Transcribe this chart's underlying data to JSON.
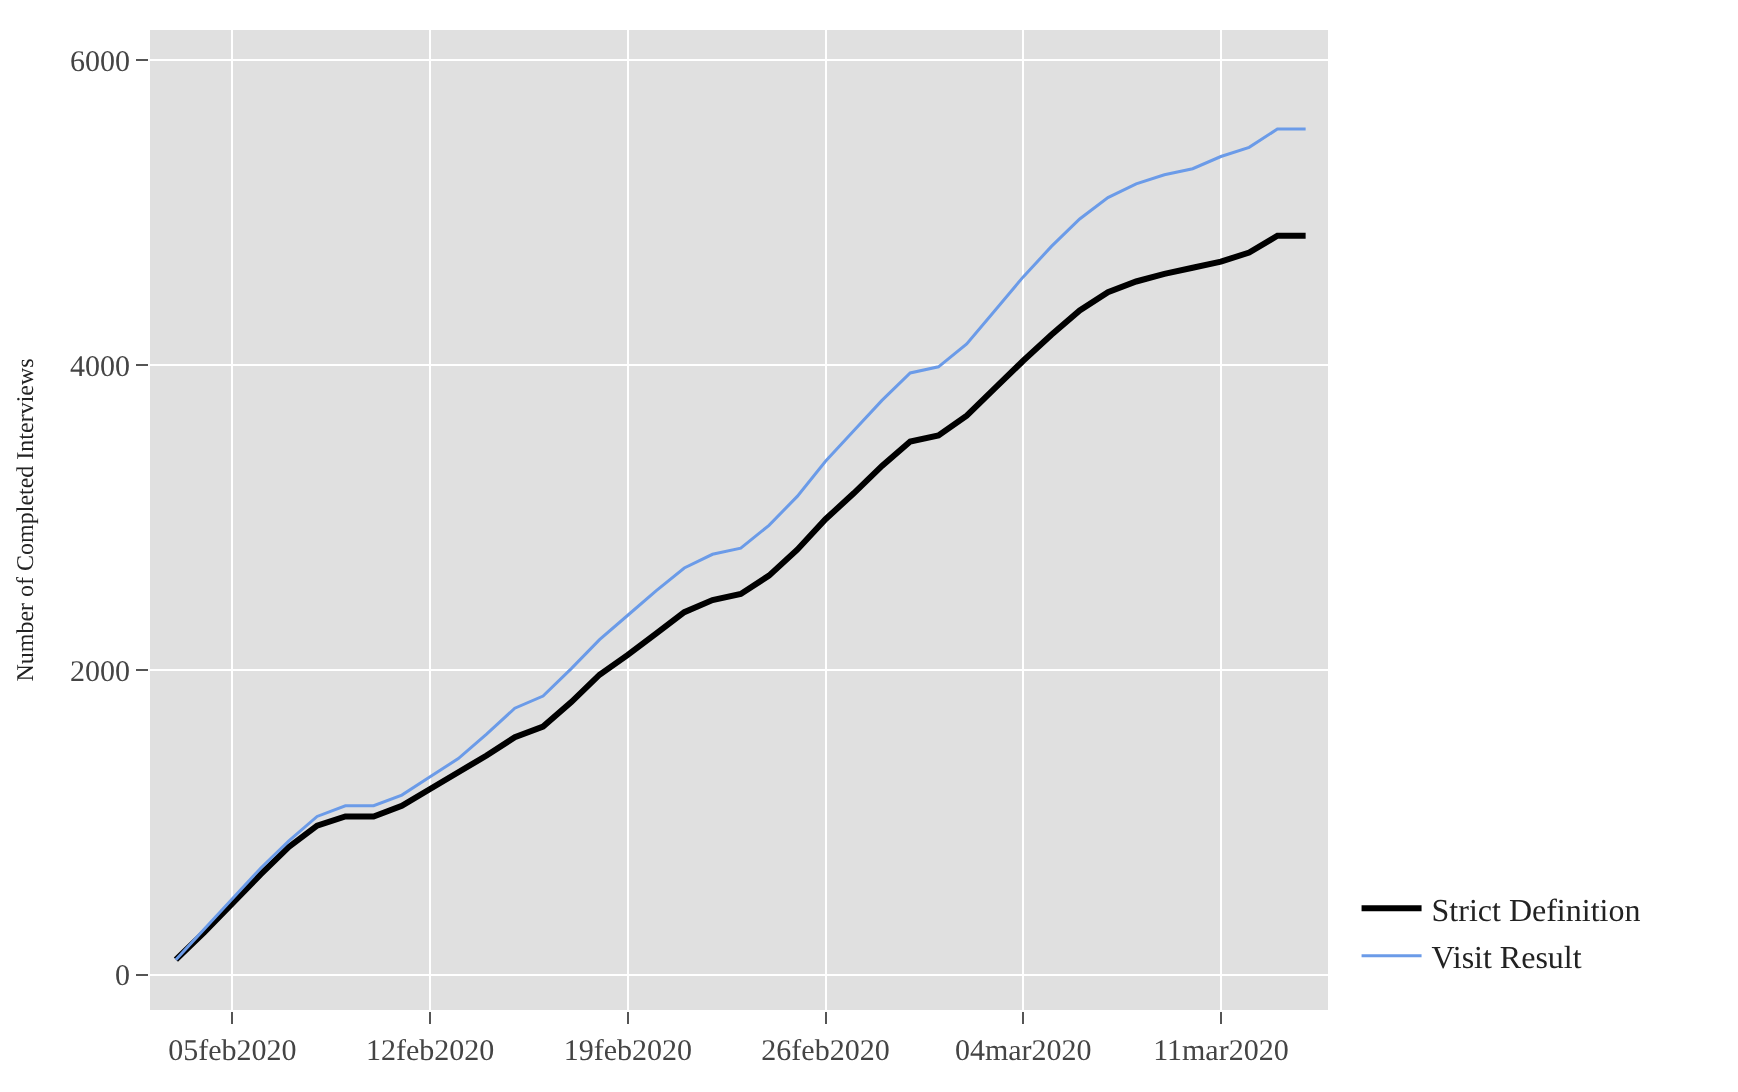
{
  "chart_data": {
    "type": "line",
    "ylabel": "Number of Completed Interviews",
    "x": [
      "2020-02-03",
      "2020-02-04",
      "2020-02-05",
      "2020-02-06",
      "2020-02-07",
      "2020-02-08",
      "2020-02-09",
      "2020-02-10",
      "2020-02-11",
      "2020-02-12",
      "2020-02-13",
      "2020-02-14",
      "2020-02-15",
      "2020-02-16",
      "2020-02-17",
      "2020-02-18",
      "2020-02-19",
      "2020-02-20",
      "2020-02-21",
      "2020-02-22",
      "2020-02-23",
      "2020-02-24",
      "2020-02-25",
      "2020-02-26",
      "2020-02-27",
      "2020-02-28",
      "2020-02-29",
      "2020-03-01",
      "2020-03-02",
      "2020-03-03",
      "2020-03-04",
      "2020-03-05",
      "2020-03-06",
      "2020-03-07",
      "2020-03-08",
      "2020-03-09",
      "2020-03-10",
      "2020-03-11",
      "2020-03-12",
      "2020-03-13",
      "2020-03-14"
    ],
    "series": [
      {
        "name": "Strict Definition",
        "color": "#000000",
        "values": [
          100,
          280,
          470,
          660,
          840,
          980,
          1040,
          1040,
          1110,
          1220,
          1330,
          1440,
          1560,
          1630,
          1790,
          1970,
          2100,
          2240,
          2380,
          2460,
          2500,
          2620,
          2790,
          2990,
          3160,
          3340,
          3500,
          3540,
          3670,
          3850,
          4030,
          4200,
          4360,
          4480,
          4550,
          4600,
          4640,
          4680,
          4740,
          4850,
          4850
        ]
      },
      {
        "name": "Visit Result",
        "color": "#6b9be8",
        "values": [
          100,
          300,
          500,
          700,
          880,
          1040,
          1110,
          1110,
          1180,
          1300,
          1420,
          1580,
          1750,
          1830,
          2010,
          2200,
          2360,
          2520,
          2670,
          2760,
          2800,
          2950,
          3140,
          3370,
          3570,
          3770,
          3950,
          3990,
          4140,
          4360,
          4580,
          4780,
          4960,
          5100,
          5190,
          5250,
          5290,
          5370,
          5430,
          5550,
          5550
        ]
      }
    ],
    "xlim": [
      "2020-02-02T02:00",
      "2020-03-14T19:00"
    ],
    "xticks": [
      {
        "value": "2020-02-05",
        "label": "05feb2020"
      },
      {
        "value": "2020-02-12",
        "label": "12feb2020"
      },
      {
        "value": "2020-02-19",
        "label": "19feb2020"
      },
      {
        "value": "2020-02-26",
        "label": "26feb2020"
      },
      {
        "value": "2020-03-04",
        "label": "04mar2020"
      },
      {
        "value": "2020-03-11",
        "label": "11mar2020"
      }
    ],
    "ylim": [
      -230,
      6200
    ],
    "yticks": [
      0,
      2000,
      4000,
      6000
    ],
    "grid": true,
    "legend": "right",
    "marker": "none",
    "line_style": "solid"
  }
}
